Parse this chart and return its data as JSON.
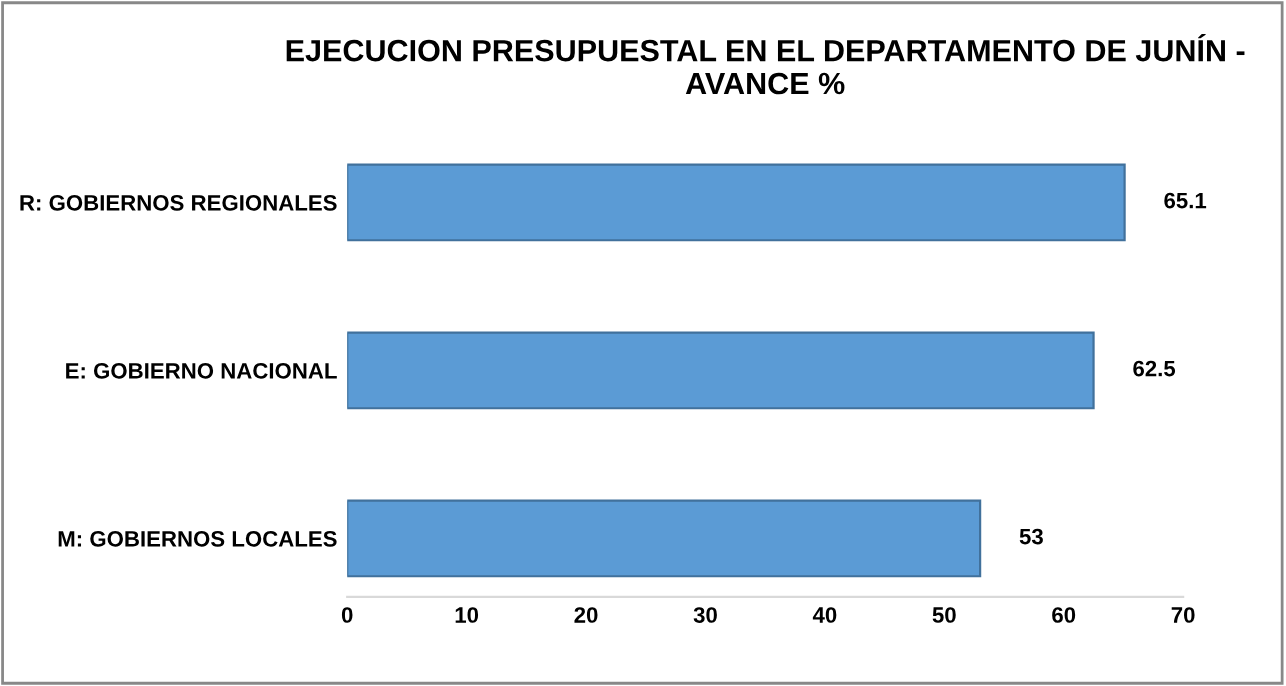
{
  "chart_data": {
    "type": "bar",
    "orientation": "horizontal",
    "title": "EJECUCION PRESUPUESTAL EN EL DEPARTAMENTO DE JUNÍN -\nAVANCE %",
    "categories": [
      "R: GOBIERNOS REGIONALES",
      "E: GOBIERNO NACIONAL",
      "M: GOBIERNOS LOCALES"
    ],
    "values": [
      65.1,
      62.5,
      53
    ],
    "color": "#5b9bd5",
    "xlim": [
      0,
      70
    ],
    "xticks": [
      0,
      10,
      20,
      30,
      40,
      50,
      60,
      70
    ],
    "data_labels": true,
    "grid": false,
    "legend": false
  }
}
